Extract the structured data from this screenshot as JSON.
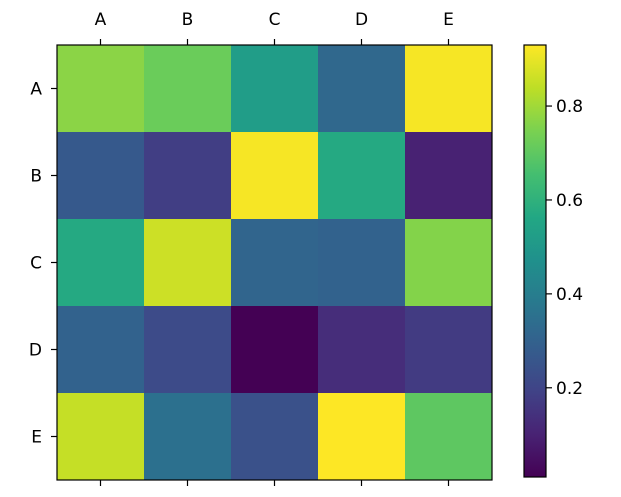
{
  "chart_data": {
    "type": "heatmap",
    "x_categories": [
      "A",
      "B",
      "C",
      "D",
      "E"
    ],
    "y_categories": [
      "A",
      "B",
      "C",
      "D",
      "E"
    ],
    "x_axis_position": "top",
    "values": [
      [
        0.77,
        0.72,
        0.52,
        0.32,
        0.92
      ],
      [
        0.27,
        0.18,
        0.92,
        0.57,
        0.1
      ],
      [
        0.57,
        0.86,
        0.31,
        0.3,
        0.76
      ],
      [
        0.3,
        0.22,
        0.01,
        0.13,
        0.17
      ],
      [
        0.85,
        0.35,
        0.24,
        0.93,
        0.7
      ]
    ],
    "colormap": "viridis",
    "vmin": 0.01,
    "vmax": 0.93,
    "colorbar": {
      "ticks": [
        0.2,
        0.4,
        0.6,
        0.8
      ],
      "tick_labels": [
        "0.2",
        "0.4",
        "0.6",
        "0.8"
      ]
    },
    "grid": false,
    "title": "",
    "xlabel": "",
    "ylabel": ""
  }
}
